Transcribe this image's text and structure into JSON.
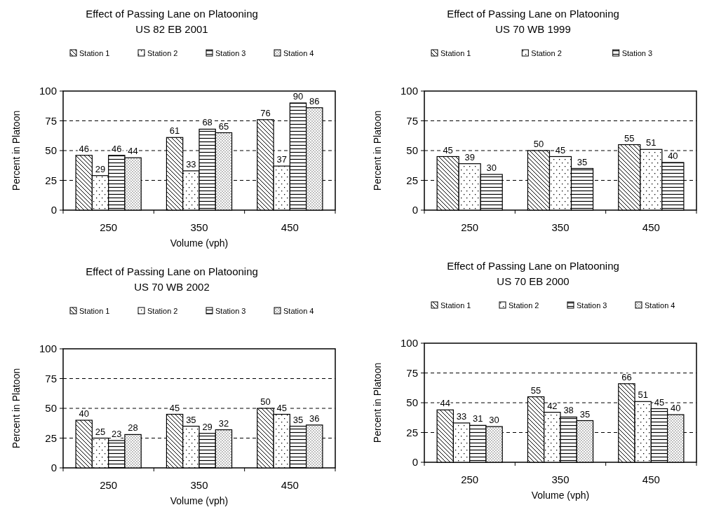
{
  "chart_data": [
    {
      "type": "bar",
      "title": "Effect of Passing Lane on Platooning",
      "subtitle": "US 82 EB 2001",
      "xlabel": "Volume (vph)",
      "ylabel": "Percent in Platoon",
      "categories": [
        "250",
        "350",
        "450"
      ],
      "series": [
        {
          "name": "Station 1",
          "color": "#000000",
          "values": [
            46,
            61,
            76
          ]
        },
        {
          "name": "Station 2",
          "color": "#000000",
          "values": [
            29,
            33,
            37
          ]
        },
        {
          "name": "Station 3",
          "color": "#000000",
          "values": [
            46,
            68,
            90
          ]
        },
        {
          "name": "Station 4",
          "color": "#000000",
          "values": [
            44,
            65,
            86
          ]
        }
      ],
      "ylim": [
        0,
        100
      ],
      "yticks": [
        0,
        25,
        50,
        75,
        100
      ],
      "grid": "y",
      "legend": "top",
      "data_labels": true
    },
    {
      "type": "bar",
      "title": "Effect of Passing Lane on Platooning",
      "subtitle": "US 70 WB 1999",
      "ylabel": "Percent in Platoon",
      "categories": [
        "250",
        "350",
        "450"
      ],
      "series": [
        {
          "name": "Station 1",
          "color": "#000000",
          "values": [
            45,
            50,
            55
          ]
        },
        {
          "name": "Station 2",
          "color": "#000000",
          "values": [
            39,
            45,
            51
          ]
        },
        {
          "name": "Station 3",
          "color": "#000000",
          "values": [
            30,
            35,
            40
          ]
        }
      ],
      "ylim": [
        0,
        100
      ],
      "yticks": [
        0,
        25,
        50,
        75,
        100
      ],
      "grid": "y",
      "legend": "top",
      "data_labels": true
    },
    {
      "type": "bar",
      "title": "Effect of Passing Lane on Platooning",
      "subtitle": "US 70 WB 2002",
      "xlabel": "Volume (vph)",
      "ylabel": "Percent in Platoon",
      "categories": [
        "250",
        "350",
        "450"
      ],
      "series": [
        {
          "name": "Station 1",
          "color": "#000000",
          "values": [
            40,
            45,
            50
          ]
        },
        {
          "name": "Station 2",
          "color": "#000000",
          "values": [
            25,
            35,
            45
          ]
        },
        {
          "name": "Station 3",
          "color": "#000000",
          "values": [
            23,
            29,
            35
          ]
        },
        {
          "name": "Station 4",
          "color": "#000000",
          "values": [
            28,
            32,
            36
          ]
        }
      ],
      "ylim": [
        0,
        100
      ],
      "yticks": [
        0,
        25,
        50,
        75,
        100
      ],
      "grid": "y",
      "legend": "top",
      "data_labels": true
    },
    {
      "type": "bar",
      "title": "Effect of Passing Lane on Platooning",
      "subtitle": "US 70 EB 2000",
      "xlabel": "Volume (vph)",
      "ylabel": "Percent in Platoon",
      "categories": [
        "250",
        "350",
        "450"
      ],
      "series": [
        {
          "name": "Station 1",
          "color": "#000000",
          "values": [
            44,
            55,
            66
          ]
        },
        {
          "name": "Station 2",
          "color": "#000000",
          "values": [
            33,
            42,
            51
          ]
        },
        {
          "name": "Station 3",
          "color": "#000000",
          "values": [
            31,
            38,
            45
          ]
        },
        {
          "name": "Station 4",
          "color": "#000000",
          "values": [
            30,
            35,
            40
          ]
        }
      ],
      "ylim": [
        0,
        100
      ],
      "yticks": [
        0,
        25,
        50,
        75,
        100
      ],
      "grid": "y",
      "legend": "top",
      "data_labels": true
    }
  ]
}
